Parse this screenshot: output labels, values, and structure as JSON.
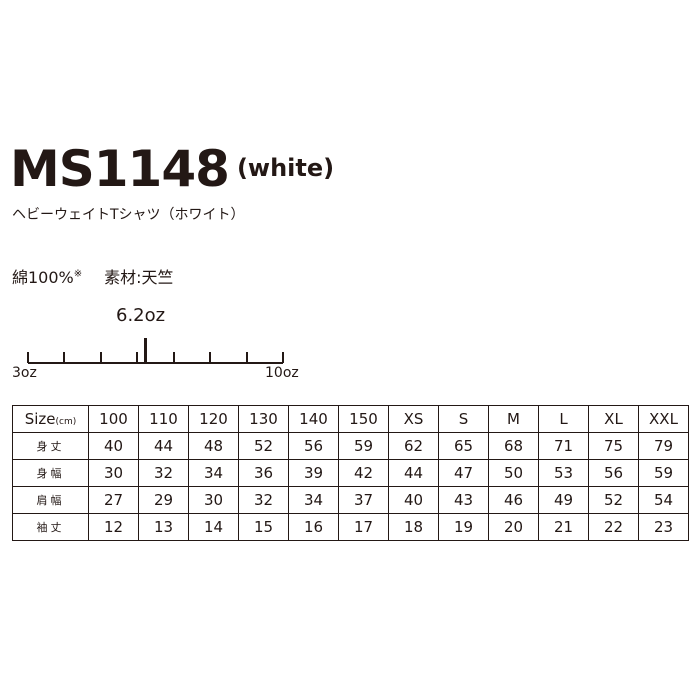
{
  "product": {
    "code": "MS1148",
    "color": "(white)",
    "name": "ヘビーウェイトTシャツ（ホワイト）"
  },
  "material": {
    "cotton": "綿100%",
    "note_mark": "※",
    "fabric": "素材:天竺"
  },
  "weight_scale": {
    "value_label": "6.2oz",
    "value": 6.2,
    "min": 3,
    "max": 10,
    "min_label": "3oz",
    "max_label": "10oz"
  },
  "size_table": {
    "header_label": "Size",
    "header_unit": "(cm)",
    "sizes": [
      "100",
      "110",
      "120",
      "130",
      "140",
      "150",
      "XS",
      "S",
      "M",
      "L",
      "XL",
      "XXL"
    ],
    "rows": [
      {
        "label": "身丈",
        "values": [
          "40",
          "44",
          "48",
          "52",
          "56",
          "59",
          "62",
          "65",
          "68",
          "71",
          "75",
          "79"
        ]
      },
      {
        "label": "身幅",
        "values": [
          "30",
          "32",
          "34",
          "36",
          "39",
          "42",
          "44",
          "47",
          "50",
          "53",
          "56",
          "59"
        ]
      },
      {
        "label": "肩幅",
        "values": [
          "27",
          "29",
          "30",
          "32",
          "34",
          "37",
          "40",
          "43",
          "46",
          "49",
          "52",
          "54"
        ]
      },
      {
        "label": "袖丈",
        "values": [
          "12",
          "13",
          "14",
          "15",
          "16",
          "17",
          "18",
          "19",
          "20",
          "21",
          "22",
          "23"
        ]
      }
    ]
  }
}
